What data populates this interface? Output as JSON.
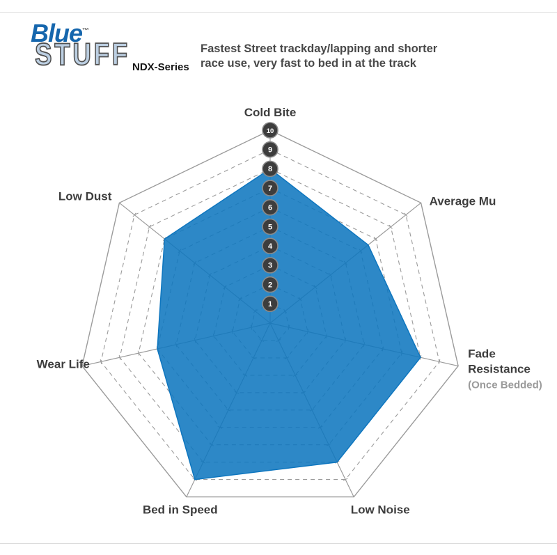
{
  "header": {
    "logo_word_top": "Blue",
    "logo_trademark": "TM",
    "logo_word_bottom": "STUFF",
    "series": "NDX-Series",
    "title_line1": "Fastest Street trackday/lapping and shorter",
    "title_line2": "race use, very fast to bed in at the track"
  },
  "chart_data": {
    "type": "radar",
    "title": "Bluestuff NDX-Series brake pad performance",
    "scale": {
      "min": 0,
      "max": 10,
      "tick_labels": [
        "1",
        "2",
        "3",
        "4",
        "5",
        "6",
        "7",
        "8",
        "9",
        "10"
      ]
    },
    "axes": [
      {
        "label": "Cold Bite",
        "value": 8
      },
      {
        "label": "Average Mu",
        "value": 6.5
      },
      {
        "label": "Fade Resistance",
        "label_lines": [
          "Fade",
          "Resistance"
        ],
        "sublabel": "(Once Bedded)",
        "value": 8
      },
      {
        "label": "Low Noise",
        "value": 8
      },
      {
        "label": "Bed in Speed",
        "value": 9
      },
      {
        "label": "Wear Life",
        "value": 6
      },
      {
        "label": "Low Dust",
        "value": 7
      }
    ],
    "layout": {
      "grid": "dashed inner rings, solid outer ring, solid spokes with ticks",
      "legend": "none"
    },
    "colors": {
      "series_fill": "#0e76bf",
      "grid": "#9b9b9b",
      "scale_circle_fill": "#3d3d3d",
      "scale_circle_ring": "#8a8a8a",
      "scale_text": "#ffffff",
      "label": "#3d3d3d",
      "sublabel": "#9a9a9a"
    }
  }
}
